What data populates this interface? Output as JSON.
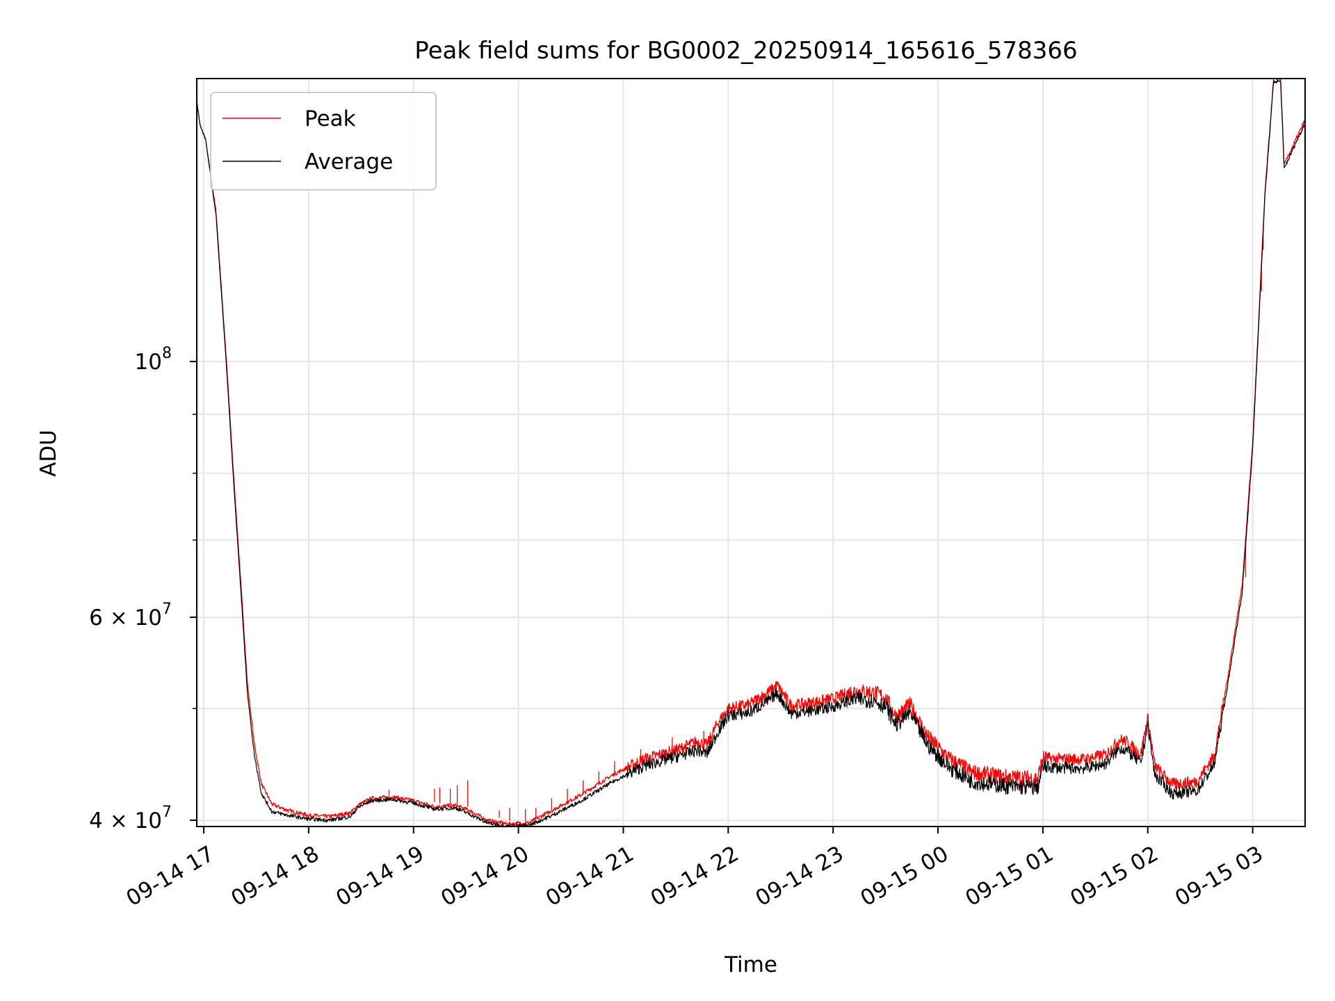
{
  "chart_data": {
    "type": "line",
    "title": "Peak field sums for BG0002_20250914_165616_578366",
    "xlabel": "Time",
    "ylabel": "ADU",
    "yscale": "log",
    "grid": true,
    "legend_position": "upper-left",
    "xlim": [
      "2025-09-14 16:56",
      "2025-09-15 03:30"
    ],
    "ylim": [
      39500000,
      176000000
    ],
    "x_ticks": [
      {
        "value": "2025-09-14 17:00",
        "label": "09-14 17"
      },
      {
        "value": "2025-09-14 18:00",
        "label": "09-14 18"
      },
      {
        "value": "2025-09-14 19:00",
        "label": "09-14 19"
      },
      {
        "value": "2025-09-14 20:00",
        "label": "09-14 20"
      },
      {
        "value": "2025-09-14 21:00",
        "label": "09-14 21"
      },
      {
        "value": "2025-09-14 22:00",
        "label": "09-14 22"
      },
      {
        "value": "2025-09-14 23:00",
        "label": "09-14 23"
      },
      {
        "value": "2025-09-15 00:00",
        "label": "09-15 00"
      },
      {
        "value": "2025-09-15 01:00",
        "label": "09-15 01"
      },
      {
        "value": "2025-09-15 02:00",
        "label": "09-15 02"
      },
      {
        "value": "2025-09-15 03:00",
        "label": "09-15 03"
      }
    ],
    "y_major_ticks": [
      {
        "value": 40000000,
        "label_base": "4 × 10",
        "label_exp": "7"
      },
      {
        "value": 60000000,
        "label_base": "6 × 10",
        "label_exp": "7"
      },
      {
        "value": 100000000,
        "label_base": "10",
        "label_exp": "8"
      }
    ],
    "y_minor_ticks": [
      50000000,
      70000000,
      80000000,
      90000000
    ],
    "series": [
      {
        "name": "Peak",
        "color": "#ff0000",
        "points": [
          [
            "2025-09-14 16:56",
            168000000
          ],
          [
            "2025-09-14 16:58",
            160000000
          ],
          [
            "2025-09-14 17:01",
            156000000
          ],
          [
            "2025-09-14 17:07",
            135000000
          ],
          [
            "2025-09-14 17:13",
            100000000
          ],
          [
            "2025-09-14 17:17",
            80000000
          ],
          [
            "2025-09-14 17:21",
            65000000
          ],
          [
            "2025-09-14 17:25",
            52500000
          ],
          [
            "2025-09-14 17:29",
            46500000
          ],
          [
            "2025-09-14 17:33",
            43000000
          ],
          [
            "2025-09-14 17:39",
            41300000
          ],
          [
            "2025-09-14 17:48",
            40800000
          ],
          [
            "2025-09-14 18:00",
            40400000
          ],
          [
            "2025-09-14 18:12",
            40300000
          ],
          [
            "2025-09-14 18:24",
            40600000
          ],
          [
            "2025-09-14 18:28",
            41200000
          ],
          [
            "2025-09-14 18:36",
            41800000
          ],
          [
            "2025-09-14 18:48",
            41900000
          ],
          [
            "2025-09-14 19:00",
            41600000
          ],
          [
            "2025-09-14 19:12",
            41100000
          ],
          [
            "2025-09-14 19:24",
            41200000
          ],
          [
            "2025-09-14 19:32",
            40800000
          ],
          [
            "2025-09-14 19:42",
            40000000
          ],
          [
            "2025-09-14 19:54",
            39700000
          ],
          [
            "2025-09-14 20:06",
            39800000
          ],
          [
            "2025-09-14 20:18",
            40700000
          ],
          [
            "2025-09-14 20:36",
            42100000
          ],
          [
            "2025-09-14 20:54",
            43800000
          ],
          [
            "2025-09-14 21:12",
            45200000
          ],
          [
            "2025-09-14 21:30",
            46000000
          ],
          [
            "2025-09-14 21:42",
            46800000
          ],
          [
            "2025-09-14 21:48",
            46500000
          ],
          [
            "2025-09-14 21:54",
            48600000
          ],
          [
            "2025-09-14 22:00",
            50000000
          ],
          [
            "2025-09-14 22:12",
            50400000
          ],
          [
            "2025-09-14 22:24",
            51800000
          ],
          [
            "2025-09-14 22:28",
            52400000
          ],
          [
            "2025-09-14 22:36",
            50300000
          ],
          [
            "2025-09-14 22:48",
            50600000
          ],
          [
            "2025-09-14 23:00",
            51000000
          ],
          [
            "2025-09-14 23:12",
            51800000
          ],
          [
            "2025-09-14 23:24",
            51600000
          ],
          [
            "2025-09-14 23:30",
            51100000
          ],
          [
            "2025-09-14 23:36",
            49200000
          ],
          [
            "2025-09-14 23:44",
            50400000
          ],
          [
            "2025-09-14 23:54",
            47300000
          ],
          [
            "2025-09-15 00:06",
            45300000
          ],
          [
            "2025-09-15 00:20",
            44000000
          ],
          [
            "2025-09-15 00:40",
            43600000
          ],
          [
            "2025-09-15 00:57",
            43500000
          ],
          [
            "2025-09-15 01:00",
            45300000
          ],
          [
            "2025-09-15 01:12",
            45200000
          ],
          [
            "2025-09-15 01:24",
            45200000
          ],
          [
            "2025-09-15 01:36",
            45600000
          ],
          [
            "2025-09-15 01:44",
            47000000
          ],
          [
            "2025-09-15 01:48",
            46800000
          ],
          [
            "2025-09-15 01:56",
            45600000
          ],
          [
            "2025-09-15 02:00",
            49100000
          ],
          [
            "2025-09-15 02:04",
            44600000
          ],
          [
            "2025-09-15 02:14",
            43000000
          ],
          [
            "2025-09-15 02:28",
            43200000
          ],
          [
            "2025-09-15 02:38",
            45500000
          ],
          [
            "2025-09-15 02:46",
            53500000
          ],
          [
            "2025-09-15 02:54",
            64000000
          ],
          [
            "2025-09-15 03:00",
            85000000
          ],
          [
            "2025-09-15 03:07",
            140000000
          ],
          [
            "2025-09-15 03:12",
            176000000
          ],
          [
            "2025-09-15 03:16",
            176000000
          ],
          [
            "2025-09-15 03:18",
            148000000
          ],
          [
            "2025-09-15 03:24",
            155000000
          ],
          [
            "2025-09-15 03:30",
            162000000
          ]
        ],
        "spikes": [
          [
            "2025-09-14 18:46",
            41600000,
            42500000
          ],
          [
            "2025-09-14 19:12",
            41500000,
            42600000
          ],
          [
            "2025-09-14 19:15",
            41400000,
            42700000
          ],
          [
            "2025-09-14 19:21",
            41300000,
            42600000
          ],
          [
            "2025-09-14 19:25",
            41300000,
            42900000
          ],
          [
            "2025-09-14 19:31",
            41100000,
            43300000
          ],
          [
            "2025-09-14 19:49",
            40200000,
            40800000
          ],
          [
            "2025-09-14 19:55",
            40000000,
            41000000
          ],
          [
            "2025-09-14 20:04",
            39900000,
            40900000
          ],
          [
            "2025-09-14 20:10",
            40100000,
            41000000
          ],
          [
            "2025-09-14 20:19",
            40700000,
            41800000
          ],
          [
            "2025-09-14 20:28",
            41400000,
            42600000
          ],
          [
            "2025-09-14 20:37",
            42100000,
            43300000
          ],
          [
            "2025-09-14 20:46",
            42900000,
            44100000
          ],
          [
            "2025-09-14 20:55",
            43800000,
            45000000
          ],
          [
            "2025-09-14 21:10",
            44900000,
            46100000
          ],
          [
            "2025-09-14 21:28",
            45700000,
            47200000
          ],
          [
            "2025-09-14 21:46",
            46500000,
            47800000
          ],
          [
            "2025-09-15 02:56",
            65000000,
            69500000
          ],
          [
            "2025-09-15 03:05",
            115000000,
            122000000
          ],
          [
            "2025-09-15 03:06",
            125000000,
            129000000
          ]
        ]
      },
      {
        "name": "Average",
        "color": "#000000",
        "points": [
          [
            "2025-09-14 16:56",
            168000000
          ],
          [
            "2025-09-14 16:58",
            160000000
          ],
          [
            "2025-09-14 17:01",
            156000000
          ],
          [
            "2025-09-14 17:07",
            134000000
          ],
          [
            "2025-09-14 17:13",
            99000000
          ],
          [
            "2025-09-14 17:17",
            79000000
          ],
          [
            "2025-09-14 17:21",
            64000000
          ],
          [
            "2025-09-14 17:25",
            51500000
          ],
          [
            "2025-09-14 17:29",
            45500000
          ],
          [
            "2025-09-14 17:33",
            42200000
          ],
          [
            "2025-09-14 17:39",
            40700000
          ],
          [
            "2025-09-14 17:48",
            40400000
          ],
          [
            "2025-09-14 18:00",
            40100000
          ],
          [
            "2025-09-14 18:12",
            40000000
          ],
          [
            "2025-09-14 18:24",
            40300000
          ],
          [
            "2025-09-14 18:28",
            41000000
          ],
          [
            "2025-09-14 18:36",
            41600000
          ],
          [
            "2025-09-14 18:48",
            41700000
          ],
          [
            "2025-09-14 19:00",
            41400000
          ],
          [
            "2025-09-14 19:12",
            40900000
          ],
          [
            "2025-09-14 19:24",
            41000000
          ],
          [
            "2025-09-14 19:32",
            40500000
          ],
          [
            "2025-09-14 19:42",
            39800000
          ],
          [
            "2025-09-14 19:54",
            39500000
          ],
          [
            "2025-09-14 20:06",
            39600000
          ],
          [
            "2025-09-14 20:18",
            40300000
          ],
          [
            "2025-09-14 20:36",
            41600000
          ],
          [
            "2025-09-14 20:54",
            43200000
          ],
          [
            "2025-09-14 21:12",
            44600000
          ],
          [
            "2025-09-14 21:30",
            45400000
          ],
          [
            "2025-09-14 21:42",
            46000000
          ],
          [
            "2025-09-14 21:48",
            45700000
          ],
          [
            "2025-09-14 21:54",
            47700000
          ],
          [
            "2025-09-14 22:00",
            49300000
          ],
          [
            "2025-09-14 22:12",
            49600000
          ],
          [
            "2025-09-14 22:24",
            50900000
          ],
          [
            "2025-09-14 22:28",
            51600000
          ],
          [
            "2025-09-14 22:36",
            49500000
          ],
          [
            "2025-09-14 22:48",
            49800000
          ],
          [
            "2025-09-14 23:00",
            50200000
          ],
          [
            "2025-09-14 23:12",
            51000000
          ],
          [
            "2025-09-14 23:24",
            50800000
          ],
          [
            "2025-09-14 23:30",
            50200000
          ],
          [
            "2025-09-14 23:36",
            48400000
          ],
          [
            "2025-09-14 23:44",
            49600000
          ],
          [
            "2025-09-14 23:54",
            46500000
          ],
          [
            "2025-09-15 00:06",
            44500000
          ],
          [
            "2025-09-15 00:20",
            43200000
          ],
          [
            "2025-09-15 00:40",
            42800000
          ],
          [
            "2025-09-15 00:57",
            42700000
          ],
          [
            "2025-09-15 01:00",
            44500000
          ],
          [
            "2025-09-15 01:12",
            44400000
          ],
          [
            "2025-09-15 01:24",
            44400000
          ],
          [
            "2025-09-15 01:36",
            44800000
          ],
          [
            "2025-09-15 01:44",
            46200000
          ],
          [
            "2025-09-15 01:48",
            46000000
          ],
          [
            "2025-09-15 01:56",
            44800000
          ],
          [
            "2025-09-15 02:00",
            48400000
          ],
          [
            "2025-09-15 02:04",
            43800000
          ],
          [
            "2025-09-15 02:14",
            42200000
          ],
          [
            "2025-09-15 02:28",
            42400000
          ],
          [
            "2025-09-15 02:38",
            44700000
          ],
          [
            "2025-09-15 02:46",
            52700000
          ],
          [
            "2025-09-15 02:54",
            63000000
          ],
          [
            "2025-09-15 03:00",
            84000000
          ],
          [
            "2025-09-15 03:07",
            139000000
          ],
          [
            "2025-09-15 03:12",
            175000000
          ],
          [
            "2025-09-15 03:16",
            175000000
          ],
          [
            "2025-09-15 03:18",
            147000000
          ],
          [
            "2025-09-15 03:24",
            154000000
          ],
          [
            "2025-09-15 03:30",
            161000000
          ]
        ]
      }
    ]
  }
}
